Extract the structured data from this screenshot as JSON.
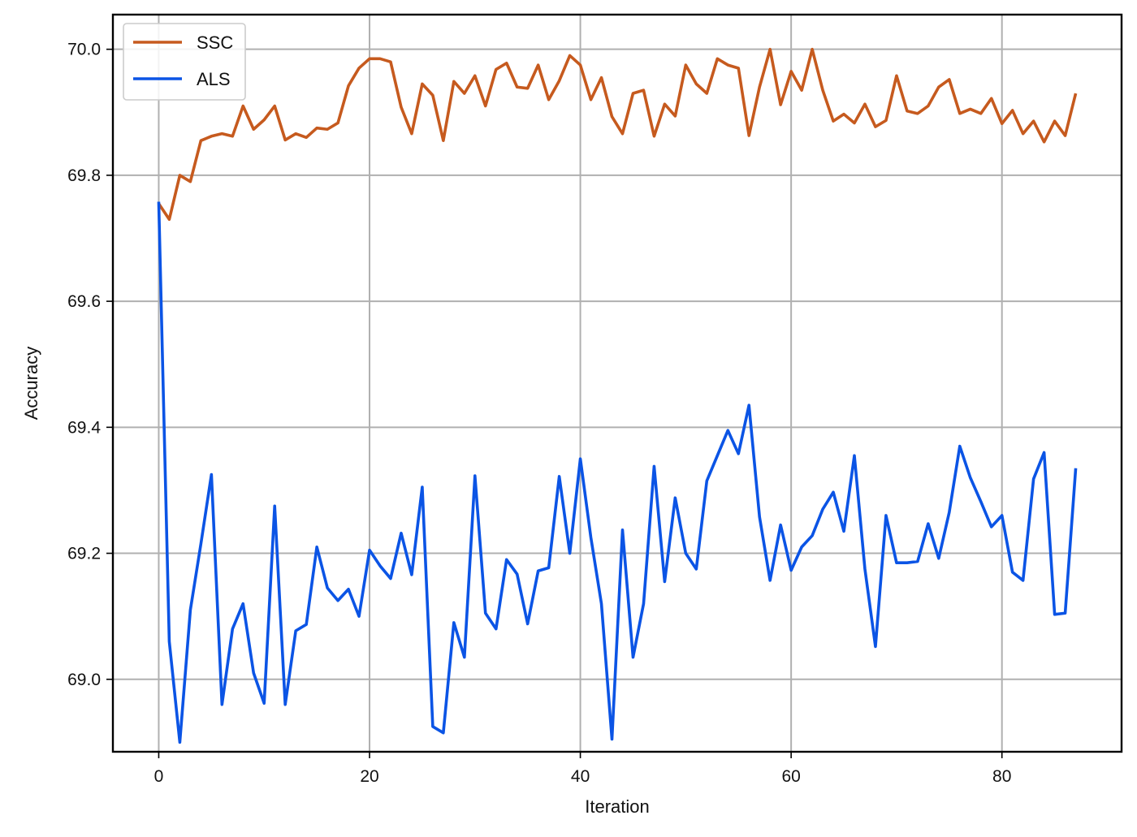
{
  "chart_data": {
    "type": "line",
    "title": "",
    "xlabel": "Iteration",
    "ylabel": "Accuracy",
    "xlim": [
      -4.35,
      91.35
    ],
    "ylim": [
      68.885,
      70.055
    ],
    "xticks": [
      0,
      20,
      40,
      60,
      80
    ],
    "xtick_labels": [
      "0",
      "20",
      "40",
      "60",
      "80"
    ],
    "yticks": [
      69.0,
      69.2,
      69.4,
      69.6,
      69.8,
      70.0
    ],
    "ytick_labels": [
      "69.0",
      "69.2",
      "69.4",
      "69.6",
      "69.8",
      "70.0"
    ],
    "grid": true,
    "legend_position": "upper-left",
    "series": [
      {
        "name": "SSC",
        "color": "#c65a1e",
        "values": [
          69.755,
          69.73,
          69.8,
          69.79,
          69.855,
          69.862,
          69.866,
          69.862,
          69.91,
          69.873,
          69.888,
          69.91,
          69.856,
          69.866,
          69.86,
          69.875,
          69.873,
          69.883,
          69.942,
          69.97,
          69.985,
          69.985,
          69.98,
          69.908,
          69.866,
          69.945,
          69.927,
          69.855,
          69.949,
          69.93,
          69.958,
          69.91,
          69.968,
          69.978,
          69.94,
          69.938,
          69.975,
          69.92,
          69.95,
          69.99,
          69.975,
          69.92,
          69.955,
          69.893,
          69.866,
          69.93,
          69.935,
          69.862,
          69.913,
          69.894,
          69.975,
          69.945,
          69.93,
          69.985,
          69.975,
          69.97,
          69.863,
          69.94,
          70.0,
          69.912,
          69.965,
          69.935,
          70.0,
          69.935,
          69.886,
          69.897,
          69.883,
          69.913,
          69.877,
          69.887,
          69.958,
          69.902,
          69.898,
          69.91,
          69.94,
          69.952,
          69.898,
          69.905,
          69.898,
          69.922,
          69.882,
          69.903,
          69.866,
          69.886,
          69.853,
          69.886,
          69.863,
          69.93
        ]
      },
      {
        "name": "ALS",
        "color": "#0b54e5",
        "values": [
          69.758,
          69.06,
          68.9,
          69.11,
          69.215,
          69.325,
          68.96,
          69.08,
          69.12,
          69.01,
          68.962,
          69.275,
          68.96,
          69.077,
          69.087,
          69.21,
          69.145,
          69.125,
          69.143,
          69.1,
          69.205,
          69.18,
          69.16,
          69.232,
          69.166,
          69.305,
          68.925,
          68.915,
          69.09,
          69.035,
          69.323,
          69.105,
          69.08,
          69.19,
          69.167,
          69.088,
          69.172,
          69.177,
          69.322,
          69.2,
          69.35,
          69.225,
          69.12,
          68.905,
          69.237,
          69.035,
          69.12,
          69.338,
          69.155,
          69.288,
          69.2,
          69.175,
          69.315,
          69.355,
          69.395,
          69.358,
          69.435,
          69.258,
          69.157,
          69.245,
          69.173,
          69.21,
          69.228,
          69.27,
          69.297,
          69.235,
          69.355,
          69.175,
          69.052,
          69.26,
          69.185,
          69.185,
          69.187,
          69.247,
          69.192,
          69.265,
          69.37,
          69.32,
          69.282,
          69.242,
          69.26,
          69.17,
          69.157,
          69.318,
          69.36,
          69.103,
          69.105,
          69.335
        ]
      }
    ]
  }
}
